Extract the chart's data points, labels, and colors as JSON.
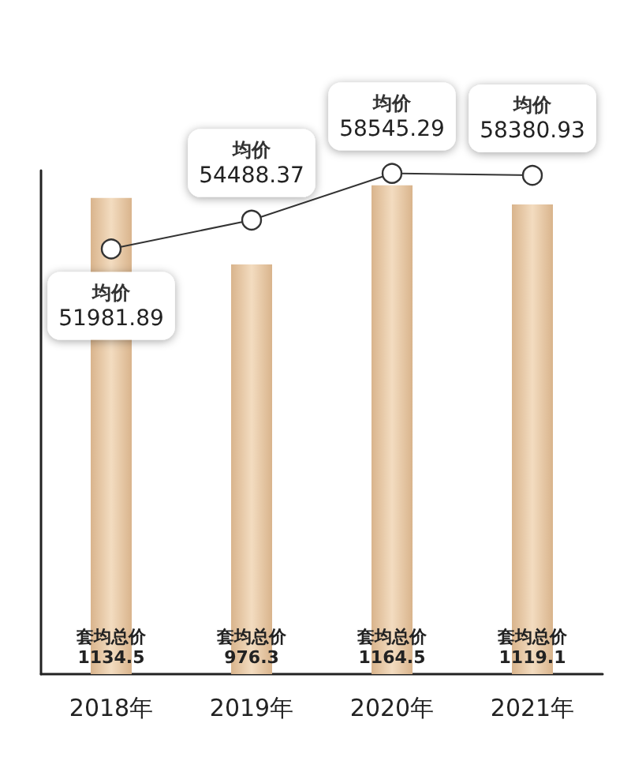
{
  "chart_data": {
    "type": "bar",
    "categories": [
      "2018年",
      "2019年",
      "2020年",
      "2021年"
    ],
    "series": [
      {
        "name": "套均总价",
        "color": "#d9b48c",
        "values": [
          1134.5,
          976.3,
          1164.5,
          1119.1
        ]
      },
      {
        "name": "均价",
        "type": "line",
        "axis": "y2",
        "color": "#333333",
        "marker": "circle",
        "values": [
          51981.89,
          54488.37,
          58545.29,
          58380.93
        ]
      }
    ],
    "ylim": [
      0,
      1200
    ],
    "y2lim": [
      15000,
      58800
    ],
    "tick_labels": "x",
    "data_labels": true,
    "legend": false,
    "grid": false
  }
}
